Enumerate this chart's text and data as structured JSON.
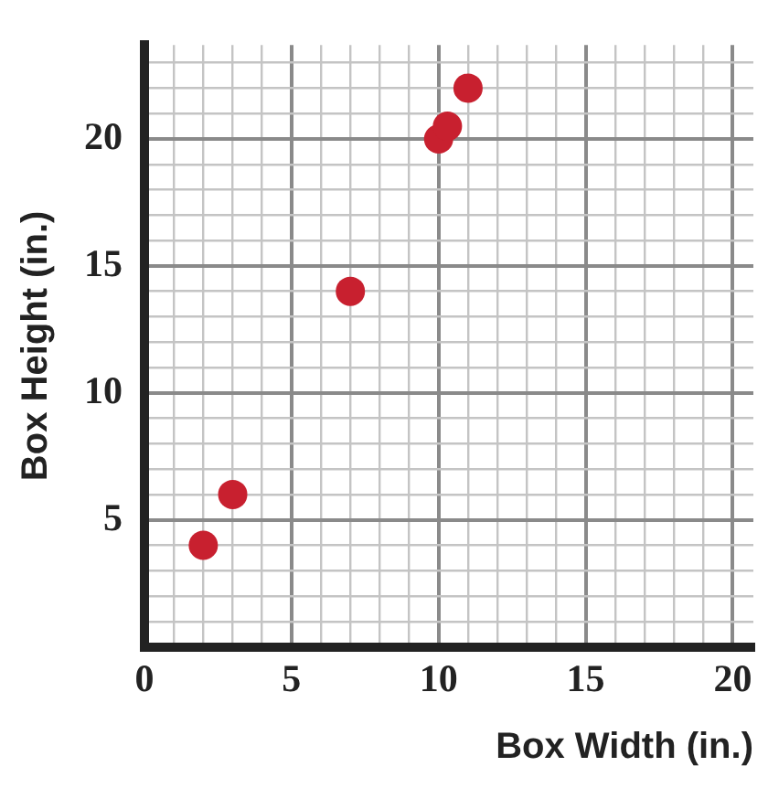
{
  "chart_data": {
    "type": "scatter",
    "xlabel": "Box Width (in.)",
    "ylabel": "Box Height (in.)",
    "x": [
      2,
      3,
      7,
      10,
      10.3,
      11
    ],
    "series": [
      {
        "color": "#c8202f",
        "values": [
          4,
          6,
          14,
          20,
          20.5,
          22
        ]
      }
    ],
    "xlim": [
      0,
      20.7
    ],
    "ylim": [
      0,
      23.7
    ],
    "xticks": [
      0,
      {
        "value": 1,
        "label": null
      },
      {
        "value": 2,
        "label": null
      },
      {
        "value": 3,
        "label": null
      },
      {
        "value": 4,
        "label": null
      },
      5,
      {
        "value": 6,
        "label": null
      },
      {
        "value": 7,
        "label": null
      },
      {
        "value": 8,
        "label": null
      },
      {
        "value": 9,
        "label": null
      },
      10,
      {
        "value": 11,
        "label": null
      },
      {
        "value": 12,
        "label": null
      },
      {
        "value": 13,
        "label": null
      },
      {
        "value": 14,
        "label": null
      },
      15,
      {
        "value": 16,
        "label": null
      },
      {
        "value": 17,
        "label": null
      },
      {
        "value": 18,
        "label": null
      },
      {
        "value": 19,
        "label": null
      },
      20
    ],
    "yticks": [
      {
        "value": 1,
        "label": null
      },
      {
        "value": 2,
        "label": null
      },
      {
        "value": 3,
        "label": null
      },
      {
        "value": 4,
        "label": null
      },
      5,
      {
        "value": 6,
        "label": null
      },
      {
        "value": 7,
        "label": null
      },
      {
        "value": 8,
        "label": null
      },
      {
        "value": 9,
        "label": null
      },
      10,
      {
        "value": 11,
        "label": null
      },
      {
        "value": 12,
        "label": null
      },
      {
        "value": 13,
        "label": null
      },
      {
        "value": 14,
        "label": null
      },
      15,
      {
        "value": 16,
        "label": null
      },
      {
        "value": 17,
        "label": null
      },
      {
        "value": 18,
        "label": null
      },
      {
        "value": 19,
        "label": null
      },
      20,
      {
        "value": 21,
        "label": null
      },
      {
        "value": 22,
        "label": null
      },
      {
        "value": 23,
        "label": null
      }
    ],
    "grid": true,
    "marker": "circle"
  }
}
